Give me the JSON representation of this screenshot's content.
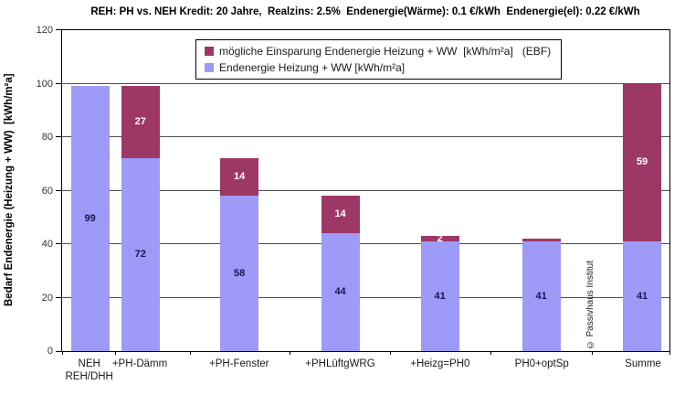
{
  "title": "REH: PH vs. NEH Kredit: 20 Jahre,  Realzins: 2.5%  Endenergie(Wärme): 0.1 €/kWh  Endenergie(el): 0.22 €/kWh",
  "watermark": "© Passivhaus Institut",
  "chart_data": {
    "type": "bar",
    "stacked": true,
    "title": "REH: PH vs. NEH Kredit: 20 Jahre,  Realzins: 2.5%  Endenergie(Wärme): 0.1 €/kWh  Endenergie(el): 0.22 €/kWh",
    "xlabel": "",
    "ylabel": "Bedarf Endenergie (Heizung + WW)  [kWh/m²a]",
    "ylim": [
      0,
      120
    ],
    "ytick_step": 20,
    "grid": true,
    "legend_position": "top-inside",
    "categories": [
      "NEH\nREH/DHH",
      "+PH-Dämm",
      "+PH-Fenster",
      "+PHLüftgWRG",
      "+Heizg=PH0",
      "PH0+optSp",
      "Summe"
    ],
    "bar_centers_pct": [
      4.6,
      12.9,
      29.2,
      45.8,
      62.2,
      78.9,
      95.5
    ],
    "series": [
      {
        "name": "Endenergie Heizung + WW [kWh/m²a]",
        "color": "#9D9AF8",
        "label_color": "#17174F",
        "values": [
          99,
          72,
          58,
          44,
          41,
          41,
          41
        ],
        "labels": [
          "99",
          "72",
          "58",
          "44",
          "41",
          "41",
          "41"
        ]
      },
      {
        "name": "mögliche Einsparung Endenergie Heizung + WW  [kWh/m²a]   (EBF)",
        "color": "#9D3866",
        "label_color": "#FFFFFF",
        "values": [
          0,
          27,
          14,
          14,
          2,
          1,
          59
        ],
        "labels": [
          "",
          "27",
          "14",
          "14",
          "2",
          "",
          "59"
        ]
      }
    ]
  }
}
